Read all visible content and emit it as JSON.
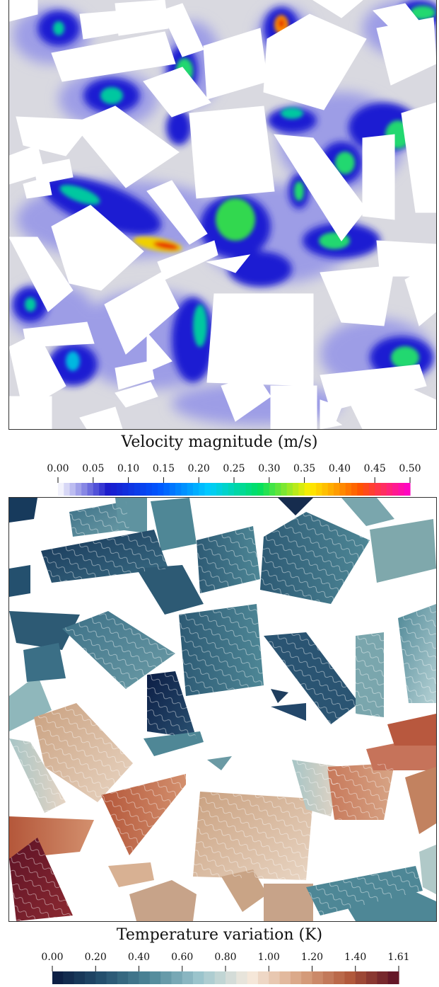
{
  "chart_data": [
    {
      "type": "heatmap",
      "title": "Velocity magnitude (m/s)",
      "colorbar": {
        "min": 0.0,
        "max": 0.5,
        "ticks": [
          "0.00",
          "0.05",
          "0.10",
          "0.15",
          "0.20",
          "0.25",
          "0.30",
          "0.35",
          "0.40",
          "0.45",
          "0.50"
        ],
        "colors": [
          "#ffffff",
          "#1a1acc",
          "#0055ff",
          "#00ccff",
          "#00e060",
          "#ffee00",
          "#ff5500",
          "#ff00cc"
        ]
      },
      "peak_value": 0.45,
      "grid": false
    },
    {
      "type": "heatmap",
      "title": "Temperature variation (K)",
      "colorbar": {
        "min": 0.0,
        "max": 1.61,
        "ticks": [
          "0.00",
          "0.20",
          "0.40",
          "0.60",
          "0.80",
          "1.00",
          "1.20",
          "1.40",
          "1.61"
        ],
        "colors": [
          "#0a1a40",
          "#24506e",
          "#4f8899",
          "#9fc7cf",
          "#f6eadd",
          "#d9a483",
          "#b25a3c",
          "#5a0f24"
        ]
      },
      "grid": false
    }
  ]
}
